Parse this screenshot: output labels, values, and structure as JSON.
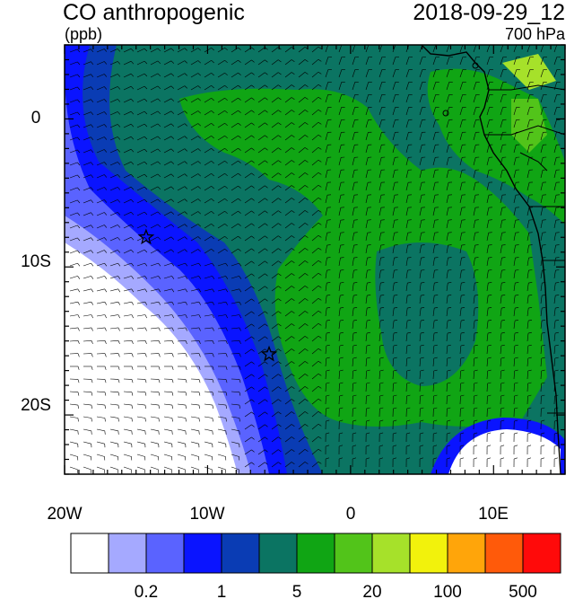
{
  "title": "CO anthropogenic",
  "units": "(ppb)",
  "timestamp": "2018-09-29_12",
  "level": "700 hPa",
  "map": {
    "x_ticks": [
      "20W",
      "10W",
      "0",
      "10E"
    ],
    "y_ticks": [
      "0",
      "10S",
      "20S"
    ],
    "lon_range": [
      -20,
      15
    ],
    "lat_range": [
      -24,
      5
    ],
    "markers": [
      {
        "lon": -14.3,
        "lat": -8.0,
        "symbol": "star"
      },
      {
        "lon": -5.7,
        "lat": -15.9,
        "symbol": "star"
      }
    ]
  },
  "colorbar": {
    "colors": [
      "#ffffff",
      "#a5a9ff",
      "#5a63ff",
      "#0a14ff",
      "#0a3cb4",
      "#0b7462",
      "#10a514",
      "#52c41a",
      "#a6e12a",
      "#f2f20c",
      "#ffa50a",
      "#ff5a0a",
      "#ff0a0a"
    ],
    "labels": [
      "0.2",
      "1",
      "5",
      "20",
      "100",
      "500"
    ]
  }
}
